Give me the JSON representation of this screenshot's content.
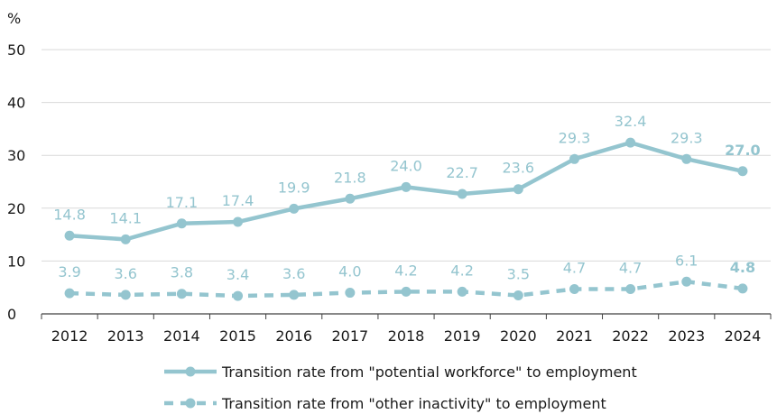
{
  "chart_data": {
    "type": "line",
    "y_unit": "%",
    "ylim": [
      0,
      50
    ],
    "yticks": [
      0,
      10,
      20,
      30,
      40,
      50
    ],
    "grid": true,
    "legend_position": "bottom",
    "categories": [
      "2012",
      "2013",
      "2014",
      "2015",
      "2016",
      "2017",
      "2018",
      "2019",
      "2020",
      "2021",
      "2022",
      "2023",
      "2024"
    ],
    "series": [
      {
        "name": "Transition rate from \"potential workforce\" to employment",
        "style": "solid",
        "color": "#94c5cf",
        "values": [
          14.8,
          14.1,
          17.1,
          17.4,
          19.9,
          21.8,
          24.0,
          22.7,
          23.6,
          29.3,
          32.4,
          29.3,
          27.0
        ],
        "labels": [
          "14.8",
          "14.1",
          "17.1",
          "17.4",
          "19.9",
          "21.8",
          "24.0",
          "22.7",
          "23.6",
          "29.3",
          "32.4",
          "29.3",
          "27.0"
        ]
      },
      {
        "name": "Transition rate from \"other inactivity\" to employment",
        "style": "dashed",
        "color": "#94c5cf",
        "values": [
          3.9,
          3.6,
          3.8,
          3.4,
          3.6,
          4.0,
          4.2,
          4.2,
          3.5,
          4.7,
          4.7,
          6.1,
          4.8
        ],
        "labels": [
          "3.9",
          "3.6",
          "3.8",
          "3.4",
          "3.6",
          "4.0",
          "4.2",
          "4.2",
          "3.5",
          "4.7",
          "4.7",
          "6.1",
          "4.8"
        ]
      }
    ]
  }
}
